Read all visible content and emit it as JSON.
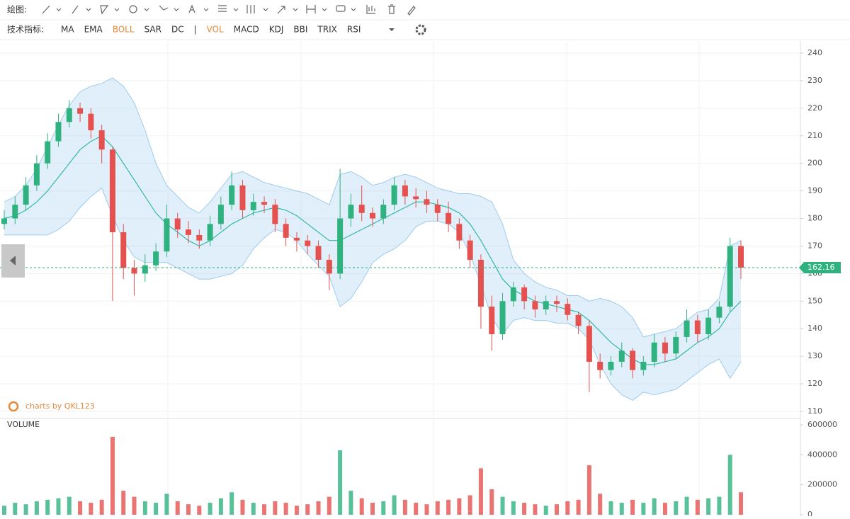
{
  "toolbar": {
    "draw_label": "绘图:",
    "indicator_label": "技术指标:",
    "indicators": [
      "MA",
      "EMA",
      "BOLL",
      "SAR",
      "DC",
      "|",
      "VOL",
      "MACD",
      "KDJ",
      "BBI",
      "TRIX",
      "RSI"
    ],
    "active": [
      2,
      6
    ],
    "active_color": "#e8893a"
  },
  "watermark": "charts by QKL123",
  "chart_data": [
    {
      "type": "candlestick",
      "open": [
        178,
        180,
        185,
        192,
        200,
        208,
        215,
        220,
        218,
        212,
        205,
        175,
        162,
        160,
        163,
        168,
        180,
        176,
        174,
        172,
        178,
        185,
        192,
        183,
        186,
        185,
        178,
        173,
        172,
        170,
        165,
        160,
        180,
        185,
        182,
        180,
        185,
        192,
        188,
        187,
        185,
        182,
        178,
        172,
        165,
        148,
        138,
        150,
        155,
        150,
        147,
        150,
        149,
        145,
        141,
        128,
        125,
        128,
        132,
        125,
        128,
        135,
        131,
        137,
        143,
        138,
        144,
        148,
        170
      ],
      "high": [
        183,
        188,
        195,
        203,
        211,
        218,
        223,
        222,
        220,
        214,
        206,
        178,
        165,
        167,
        171,
        185,
        182,
        179,
        176,
        181,
        188,
        197,
        194,
        189,
        188,
        187,
        180,
        175,
        174,
        172,
        167,
        198,
        189,
        192,
        184,
        187,
        195,
        194,
        191,
        190,
        187,
        186,
        180,
        174,
        167,
        152,
        153,
        157,
        156,
        152,
        152,
        152,
        151,
        146,
        143,
        131,
        130,
        135,
        133,
        130,
        138,
        137,
        139,
        147,
        145,
        147,
        150,
        173,
        172
      ],
      "low": [
        176,
        178,
        183,
        190,
        198,
        206,
        213,
        215,
        209,
        200,
        150,
        158,
        152,
        157,
        161,
        166,
        173,
        171,
        169,
        170,
        176,
        183,
        180,
        181,
        182,
        175,
        170,
        168,
        167,
        162,
        154,
        158,
        177,
        179,
        177,
        178,
        183,
        185,
        184,
        182,
        179,
        175,
        169,
        162,
        140,
        132,
        136,
        148,
        147,
        144,
        145,
        146,
        143,
        138,
        117,
        122,
        123,
        126,
        122,
        123,
        126,
        128,
        129,
        135,
        135,
        136,
        142,
        146,
        158
      ],
      "close": [
        180,
        185,
        192,
        200,
        208,
        215,
        220,
        218,
        212,
        205,
        175,
        162,
        160,
        163,
        168,
        180,
        176,
        174,
        172,
        178,
        185,
        192,
        183,
        186,
        185,
        178,
        173,
        172,
        170,
        165,
        160,
        180,
        185,
        182,
        180,
        185,
        192,
        188,
        187,
        185,
        182,
        178,
        172,
        165,
        148,
        138,
        150,
        155,
        150,
        147,
        150,
        149,
        145,
        141,
        128,
        125,
        128,
        132,
        125,
        128,
        135,
        131,
        137,
        143,
        138,
        144,
        148,
        170,
        162.16
      ],
      "bands": {
        "upper": [
          186,
          188,
          192,
          198,
          206,
          214,
          221,
          226,
          228,
          229,
          231,
          228,
          222,
          212,
          200,
          192,
          188,
          184,
          182,
          186,
          191,
          196,
          197,
          195,
          193,
          192,
          191,
          190,
          189,
          187,
          185,
          196,
          197,
          195,
          192,
          193,
          195,
          196,
          195,
          193,
          191,
          190,
          189,
          189,
          188,
          186,
          178,
          165,
          160,
          157,
          155,
          154,
          152,
          152,
          150,
          151,
          150,
          148,
          144,
          137,
          138,
          139,
          140,
          143,
          146,
          147,
          151,
          170,
          172
        ],
        "middle": [
          180,
          181,
          183,
          186,
          190,
          195,
          200,
          205,
          208,
          210,
          206,
          200,
          194,
          188,
          182,
          178,
          175,
          172,
          170,
          172,
          175,
          178,
          180,
          182,
          183,
          184,
          183,
          181,
          178,
          175,
          172,
          172,
          174,
          176,
          178,
          180,
          182,
          184,
          186,
          186,
          185,
          184,
          182,
          178,
          172,
          165,
          158,
          154,
          152,
          150,
          149,
          148,
          147,
          146,
          143,
          139,
          135,
          132,
          129,
          127,
          127,
          128,
          129,
          132,
          135,
          137,
          140,
          146,
          150
        ],
        "lower": [
          174,
          174,
          174,
          174,
          174,
          176,
          179,
          184,
          188,
          191,
          181,
          172,
          166,
          164,
          164,
          164,
          162,
          160,
          158,
          158,
          159,
          160,
          163,
          169,
          173,
          176,
          175,
          172,
          167,
          163,
          159,
          148,
          151,
          157,
          164,
          167,
          169,
          172,
          177,
          179,
          179,
          178,
          175,
          167,
          156,
          144,
          138,
          143,
          144,
          143,
          143,
          142,
          142,
          140,
          136,
          127,
          120,
          116,
          114,
          117,
          116,
          117,
          118,
          121,
          124,
          127,
          129,
          122,
          128
        ]
      },
      "up_color": "#2fb27f",
      "down_color": "#e4514f",
      "band_color": "#9ccbee",
      "middle_color": "#35b8a8",
      "ylim": [
        110,
        240
      ],
      "yticks": [
        110,
        120,
        130,
        140,
        150,
        160,
        170,
        180,
        190,
        200,
        210,
        220,
        230,
        240
      ],
      "last_price": 162.16,
      "grid": true
    },
    {
      "type": "bar",
      "title": "VOLUME",
      "values": [
        60000,
        80000,
        70000,
        90000,
        100000,
        110000,
        120000,
        90000,
        80000,
        100000,
        520000,
        160000,
        120000,
        90000,
        80000,
        140000,
        90000,
        70000,
        60000,
        80000,
        110000,
        150000,
        100000,
        80000,
        70000,
        90000,
        80000,
        60000,
        70000,
        90000,
        120000,
        430000,
        160000,
        110000,
        80000,
        90000,
        130000,
        100000,
        80000,
        70000,
        90000,
        100000,
        110000,
        130000,
        310000,
        170000,
        120000,
        90000,
        80000,
        70000,
        60000,
        70000,
        90000,
        100000,
        330000,
        140000,
        90000,
        80000,
        100000,
        80000,
        110000,
        80000,
        90000,
        120000,
        100000,
        110000,
        120000,
        400000,
        150000
      ],
      "ylim": [
        0,
        600000
      ],
      "yticks": [
        0,
        200000,
        400000,
        600000
      ]
    }
  ]
}
